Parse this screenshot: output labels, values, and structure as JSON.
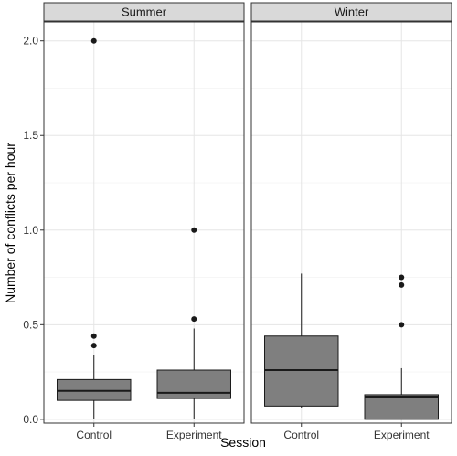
{
  "chart_data": {
    "type": "boxplot",
    "xlabel": "Session",
    "ylabel": "Number of conflicts per hour",
    "ylim": [
      -0.02,
      2.1
    ],
    "yticks": [
      0.0,
      0.5,
      1.0,
      1.5,
      2.0
    ],
    "ytick_labels": [
      "0.0",
      "0.5",
      "1.0",
      "1.5",
      "2.0"
    ],
    "grid": true,
    "colors": {
      "box_fill": "#7f7f7f",
      "strip_fill": "#d9d9d9",
      "grid": "#e5e5e5",
      "line": "#1a1a1a"
    },
    "panels": [
      {
        "strip": "Summer",
        "categories": [
          "Control",
          "Experiment"
        ],
        "boxes": [
          {
            "category": "Control",
            "whisker_low": 0.0,
            "q1": 0.1,
            "median": 0.15,
            "q3": 0.21,
            "whisker_high": 0.34,
            "outliers": [
              0.39,
              0.44,
              2.0
            ]
          },
          {
            "category": "Experiment",
            "whisker_low": 0.0,
            "q1": 0.11,
            "median": 0.14,
            "q3": 0.26,
            "whisker_high": 0.48,
            "outliers": [
              0.53,
              1.0
            ]
          }
        ]
      },
      {
        "strip": "Winter",
        "categories": [
          "Control",
          "Experiment"
        ],
        "boxes": [
          {
            "category": "Control",
            "whisker_low": 0.06,
            "q1": 0.07,
            "median": 0.26,
            "q3": 0.44,
            "whisker_high": 0.77,
            "outliers": []
          },
          {
            "category": "Experiment",
            "whisker_low": 0.0,
            "q1": 0.0,
            "median": 0.12,
            "q3": 0.13,
            "whisker_high": 0.27,
            "outliers": [
              0.5,
              0.71,
              0.75
            ]
          }
        ]
      }
    ]
  }
}
